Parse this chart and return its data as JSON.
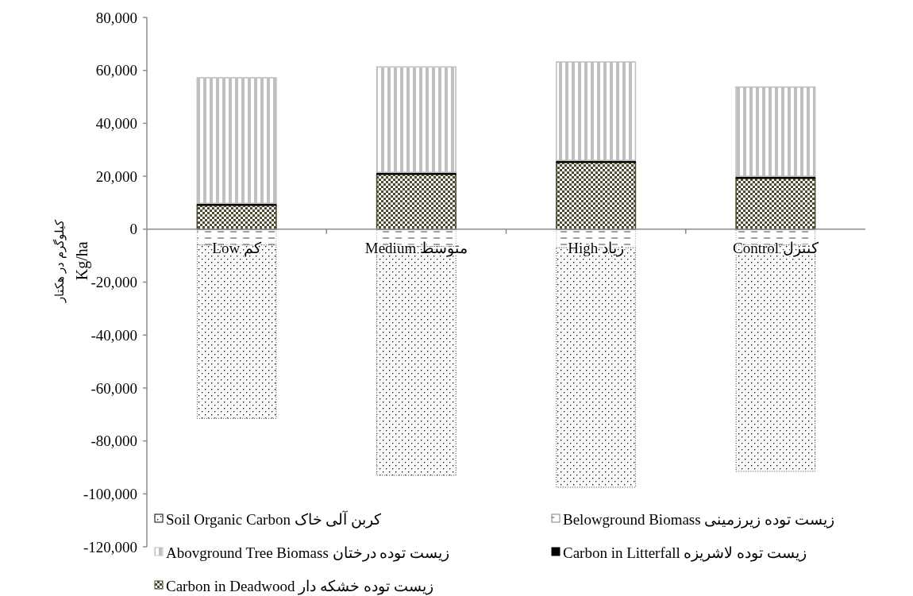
{
  "chart_data": {
    "type": "bar",
    "stacked": true,
    "ylabel": "Kg/ha\nکیلوگرم در هکتار",
    "categories": [
      "Low کم",
      "Medium متوسط",
      "High زیاد",
      "Control کنترل"
    ],
    "series": [
      {
        "name": "Belowground Biomass زیست توده زیرزمینی",
        "color": "#808080",
        "values": [
          -6000,
          -6500,
          -7000,
          -6000
        ]
      },
      {
        "name": "Soil Organic Carbon کربن آلی خاک",
        "color": "#000000",
        "values": [
          -65500,
          -86500,
          -90500,
          -85500
        ]
      },
      {
        "name": "Carbon in Deadwood زیست توده خشکه دار",
        "color": "#4d4a2e",
        "values": [
          9000,
          20700,
          25200,
          19200
        ]
      },
      {
        "name": "Carbon in Litterfall زیست توده لاشریزه",
        "color": "#000000",
        "values": [
          800,
          800,
          800,
          800
        ]
      },
      {
        "name": "Abovground Tree Biomass  زیست توده درختان",
        "color": "#c0c0c0",
        "values": [
          47400,
          39800,
          37200,
          33700
        ]
      }
    ],
    "ylim": [
      -120000,
      80000
    ],
    "yticks": [
      {
        "value": -120000,
        "label": "-120,000"
      },
      {
        "value": -100000,
        "label": "-100,000"
      },
      {
        "value": -80000,
        "label": "-80,000"
      },
      {
        "value": -60000,
        "label": "-60,000"
      },
      {
        "value": -40000,
        "label": "-40,000"
      },
      {
        "value": -20000,
        "label": "-20,000"
      },
      0,
      {
        "value": 20000,
        "label": "20,000"
      },
      {
        "value": 40000,
        "label": "40,000"
      },
      {
        "value": 60000,
        "label": "60,000"
      },
      {
        "value": 80000,
        "label": "80,000"
      }
    ],
    "legend": "bottom",
    "grid": false
  }
}
